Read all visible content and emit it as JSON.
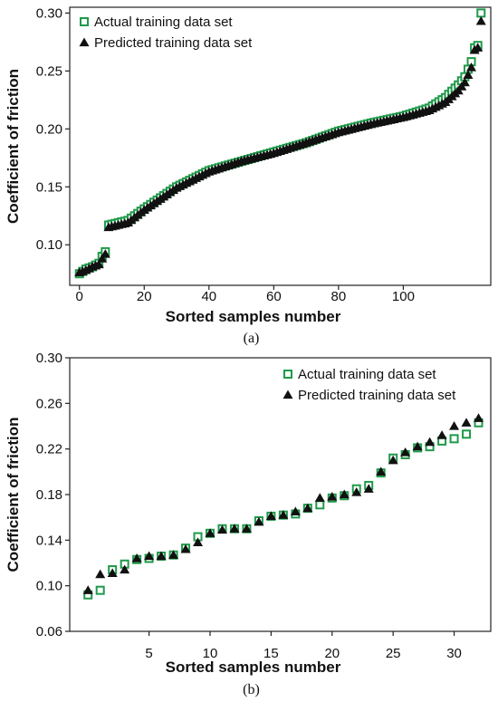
{
  "colors": {
    "actual": "#1f9a4a",
    "predicted": "#111111"
  },
  "chart_data": [
    {
      "type": "scatter",
      "panel_label": "(a)",
      "xlabel": "Sorted samples number",
      "ylabel": "Coefficient of friction",
      "xlim": [
        -3,
        127
      ],
      "ylim": [
        0.065,
        0.305
      ],
      "xticks": [
        0,
        20,
        40,
        60,
        80,
        100
      ],
      "yticks": [
        0.1,
        0.15,
        0.2,
        0.25,
        0.3
      ],
      "ytick_labels": [
        "0.10",
        "0.15",
        "0.20",
        "0.25",
        "0.30"
      ],
      "grid": false,
      "legend_position": "top-left",
      "series": [
        {
          "name": "Actual training data set",
          "marker": "open-square",
          "points": []
        },
        {
          "name": "Predicted training data set",
          "marker": "filled-triangle",
          "points": []
        }
      ],
      "curve_anchors_actual": [
        [
          0,
          0.075
        ],
        [
          2,
          0.079
        ],
        [
          4,
          0.081
        ],
        [
          6,
          0.084
        ],
        [
          7,
          0.09
        ],
        [
          8,
          0.094
        ],
        [
          9,
          0.117
        ],
        [
          15,
          0.121
        ],
        [
          20,
          0.131
        ],
        [
          30,
          0.15
        ],
        [
          40,
          0.164
        ],
        [
          50,
          0.172
        ],
        [
          60,
          0.18
        ],
        [
          70,
          0.188
        ],
        [
          80,
          0.198
        ],
        [
          90,
          0.205
        ],
        [
          100,
          0.211
        ],
        [
          108,
          0.218
        ],
        [
          113,
          0.227
        ],
        [
          117,
          0.238
        ],
        [
          119,
          0.245
        ],
        [
          121,
          0.258
        ],
        [
          122,
          0.27
        ],
        [
          123,
          0.272
        ],
        [
          124,
          0.3
        ]
      ],
      "curve_anchors_predicted": [
        [
          0,
          0.076
        ],
        [
          2,
          0.078
        ],
        [
          4,
          0.081
        ],
        [
          6,
          0.083
        ],
        [
          7,
          0.088
        ],
        [
          8,
          0.092
        ],
        [
          9,
          0.115
        ],
        [
          15,
          0.119
        ],
        [
          20,
          0.13
        ],
        [
          30,
          0.149
        ],
        [
          40,
          0.163
        ],
        [
          50,
          0.172
        ],
        [
          60,
          0.179
        ],
        [
          70,
          0.188
        ],
        [
          80,
          0.197
        ],
        [
          90,
          0.204
        ],
        [
          100,
          0.21
        ],
        [
          108,
          0.216
        ],
        [
          113,
          0.223
        ],
        [
          117,
          0.233
        ],
        [
          119,
          0.24
        ],
        [
          121,
          0.253
        ],
        [
          122,
          0.268
        ],
        [
          123,
          0.27
        ],
        [
          124,
          0.293
        ]
      ]
    },
    {
      "type": "scatter",
      "panel_label": "(b)",
      "xlabel": "Sorted samples number",
      "ylabel": "Coefficient of friction",
      "xlim": [
        -1.5,
        33
      ],
      "ylim": [
        0.06,
        0.3
      ],
      "xticks": [
        5,
        10,
        15,
        20,
        25,
        30
      ],
      "yticks": [
        0.06,
        0.1,
        0.14,
        0.18,
        0.22,
        0.26,
        0.3
      ],
      "ytick_labels": [
        "0.06",
        "0.10",
        "0.14",
        "0.18",
        "0.22",
        "0.26",
        "0.30"
      ],
      "grid": false,
      "legend_position": "top-right",
      "series": [
        {
          "name": "Actual training data set",
          "marker": "open-square",
          "points": [
            [
              0,
              0.092
            ],
            [
              1,
              0.096
            ],
            [
              2,
              0.114
            ],
            [
              3,
              0.119
            ],
            [
              4,
              0.123
            ],
            [
              5,
              0.124
            ],
            [
              6,
              0.126
            ],
            [
              7,
              0.127
            ],
            [
              8,
              0.133
            ],
            [
              9,
              0.143
            ],
            [
              10,
              0.146
            ],
            [
              11,
              0.15
            ],
            [
              12,
              0.15
            ],
            [
              13,
              0.15
            ],
            [
              14,
              0.157
            ],
            [
              15,
              0.161
            ],
            [
              16,
              0.162
            ],
            [
              17,
              0.163
            ],
            [
              18,
              0.168
            ],
            [
              19,
              0.171
            ],
            [
              20,
              0.177
            ],
            [
              21,
              0.179
            ],
            [
              22,
              0.185
            ],
            [
              23,
              0.188
            ],
            [
              24,
              0.199
            ],
            [
              25,
              0.212
            ],
            [
              26,
              0.215
            ],
            [
              27,
              0.221
            ],
            [
              28,
              0.222
            ],
            [
              29,
              0.227
            ],
            [
              30,
              0.229
            ],
            [
              31,
              0.233
            ],
            [
              32,
              0.243
            ]
          ]
        },
        {
          "name": "Predicted training data set",
          "marker": "filled-triangle",
          "points": [
            [
              0,
              0.096
            ],
            [
              1,
              0.11
            ],
            [
              2,
              0.111
            ],
            [
              3,
              0.114
            ],
            [
              4,
              0.124
            ],
            [
              5,
              0.126
            ],
            [
              6,
              0.126
            ],
            [
              7,
              0.127
            ],
            [
              8,
              0.132
            ],
            [
              9,
              0.138
            ],
            [
              10,
              0.146
            ],
            [
              11,
              0.149
            ],
            [
              12,
              0.15
            ],
            [
              13,
              0.15
            ],
            [
              14,
              0.156
            ],
            [
              15,
              0.161
            ],
            [
              16,
              0.162
            ],
            [
              17,
              0.165
            ],
            [
              18,
              0.168
            ],
            [
              19,
              0.177
            ],
            [
              20,
              0.178
            ],
            [
              21,
              0.18
            ],
            [
              22,
              0.182
            ],
            [
              23,
              0.185
            ],
            [
              24,
              0.2
            ],
            [
              25,
              0.21
            ],
            [
              26,
              0.217
            ],
            [
              27,
              0.222
            ],
            [
              28,
              0.226
            ],
            [
              29,
              0.232
            ],
            [
              30,
              0.24
            ],
            [
              31,
              0.243
            ],
            [
              32,
              0.247
            ]
          ]
        }
      ]
    }
  ]
}
